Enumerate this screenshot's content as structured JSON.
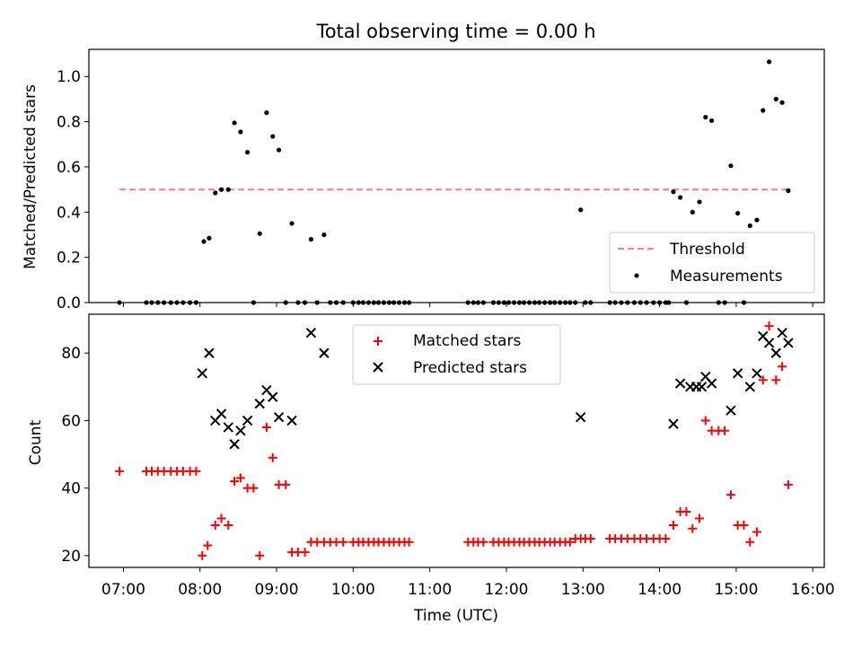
{
  "chart_data": [
    {
      "type": "scatter",
      "title": "Total observing time = 0.00 h",
      "xlabel": "",
      "ylabel": "Matched/Predicted stars",
      "xlim": [
        6.55,
        16.15
      ],
      "ylim": [
        0,
        1.12
      ],
      "yticks": [
        "0.0",
        "0.2",
        "0.4",
        "0.6",
        "0.8",
        "1.0"
      ],
      "ytick_values": [
        0,
        0.2,
        0.4,
        0.6,
        0.8,
        1.0
      ],
      "grid": false,
      "legend": {
        "placement": "lower-right",
        "entries": [
          {
            "label": "Threshold",
            "color": "#ff7f7f",
            "style": "dashed-line"
          },
          {
            "label": "Measurements",
            "color": "#000000",
            "style": "dot"
          }
        ]
      },
      "threshold": {
        "label": "Threshold",
        "value": 0.5,
        "x": [
          6.95,
          15.7
        ]
      },
      "series": [
        {
          "name": "Measurements",
          "color": "#000000",
          "points": [
            [
              6.95,
              0
            ],
            [
              7.3,
              0
            ],
            [
              7.37,
              0
            ],
            [
              7.45,
              0
            ],
            [
              7.53,
              0
            ],
            [
              7.62,
              0
            ],
            [
              7.7,
              0
            ],
            [
              7.78,
              0
            ],
            [
              7.87,
              0
            ],
            [
              7.95,
              0
            ],
            [
              8.05,
              0.27
            ],
            [
              8.12,
              0.285
            ],
            [
              8.2,
              0.485
            ],
            [
              8.28,
              0.5
            ],
            [
              8.37,
              0.5
            ],
            [
              8.45,
              0.795
            ],
            [
              8.53,
              0.755
            ],
            [
              8.62,
              0.665
            ],
            [
              8.7,
              0
            ],
            [
              8.78,
              0.305
            ],
            [
              8.87,
              0.84
            ],
            [
              8.95,
              0.735
            ],
            [
              9.03,
              0.675
            ],
            [
              9.12,
              0
            ],
            [
              9.2,
              0.35
            ],
            [
              9.28,
              0
            ],
            [
              9.37,
              0
            ],
            [
              9.45,
              0.28
            ],
            [
              9.53,
              0
            ],
            [
              9.62,
              0.3
            ],
            [
              9.7,
              0
            ],
            [
              9.78,
              0
            ],
            [
              9.87,
              0
            ],
            [
              10.0,
              0
            ],
            [
              10.07,
              0
            ],
            [
              10.13,
              0
            ],
            [
              10.2,
              0
            ],
            [
              10.27,
              0
            ],
            [
              10.33,
              0
            ],
            [
              10.4,
              0
            ],
            [
              10.47,
              0
            ],
            [
              10.53,
              0
            ],
            [
              10.6,
              0
            ],
            [
              10.67,
              0
            ],
            [
              10.73,
              0
            ],
            [
              11.5,
              0
            ],
            [
              11.57,
              0
            ],
            [
              11.63,
              0
            ],
            [
              11.7,
              0
            ],
            [
              11.83,
              0
            ],
            [
              11.9,
              0
            ],
            [
              11.97,
              0
            ],
            [
              12.03,
              0
            ],
            [
              12.1,
              0
            ],
            [
              12.17,
              0
            ],
            [
              12.23,
              0
            ],
            [
              12.3,
              0
            ],
            [
              12.37,
              0
            ],
            [
              12.43,
              0
            ],
            [
              12.5,
              0
            ],
            [
              12.57,
              0
            ],
            [
              12.63,
              0
            ],
            [
              12.7,
              0
            ],
            [
              12.77,
              0
            ],
            [
              12.83,
              0
            ],
            [
              12.9,
              0
            ],
            [
              12.97,
              0.41
            ],
            [
              13.03,
              0
            ],
            [
              13.1,
              0
            ],
            [
              13.35,
              0
            ],
            [
              13.42,
              0
            ],
            [
              13.5,
              0
            ],
            [
              13.58,
              0
            ],
            [
              13.67,
              0
            ],
            [
              13.75,
              0
            ],
            [
              13.83,
              0
            ],
            [
              13.92,
              0
            ],
            [
              14.0,
              0
            ],
            [
              14.08,
              0
            ],
            [
              14.12,
              0
            ],
            [
              14.18,
              0.49
            ],
            [
              14.27,
              0.465
            ],
            [
              14.35,
              0
            ],
            [
              14.43,
              0.4
            ],
            [
              14.52,
              0.445
            ],
            [
              14.6,
              0.82
            ],
            [
              14.68,
              0.805
            ],
            [
              14.77,
              0
            ],
            [
              14.85,
              0
            ],
            [
              14.93,
              0.605
            ],
            [
              15.02,
              0.395
            ],
            [
              15.1,
              0
            ],
            [
              15.18,
              0.34
            ],
            [
              15.27,
              0.365
            ],
            [
              15.35,
              0.85
            ],
            [
              15.43,
              1.065
            ],
            [
              15.52,
              0.9
            ],
            [
              15.6,
              0.885
            ],
            [
              15.68,
              0.495
            ]
          ]
        }
      ]
    },
    {
      "type": "scatter",
      "title": "",
      "xlabel": "Time (UTC)",
      "ylabel": "Count",
      "xlim": [
        6.55,
        16.15
      ],
      "ylim": [
        16.5,
        91.5
      ],
      "xticks": [
        "07:00",
        "08:00",
        "09:00",
        "10:00",
        "11:00",
        "12:00",
        "13:00",
        "14:00",
        "15:00",
        "16:00"
      ],
      "xtick_values": [
        7,
        8,
        9,
        10,
        11,
        12,
        13,
        14,
        15,
        16
      ],
      "yticks": [
        "20",
        "40",
        "60",
        "80"
      ],
      "ytick_values": [
        20,
        40,
        60,
        80
      ],
      "grid": false,
      "legend": {
        "placement": "upper-center",
        "entries": [
          {
            "label": "Matched stars",
            "color": "#ff0000",
            "style": "plus"
          },
          {
            "label": "Predicted stars",
            "color": "#000000",
            "style": "x"
          }
        ]
      },
      "series": [
        {
          "name": "Matched stars",
          "color": "#ff0000",
          "marker": "plus",
          "points": [
            [
              6.95,
              45
            ],
            [
              7.3,
              45
            ],
            [
              7.37,
              45
            ],
            [
              7.45,
              45
            ],
            [
              7.53,
              45
            ],
            [
              7.62,
              45
            ],
            [
              7.7,
              45
            ],
            [
              7.78,
              45
            ],
            [
              7.87,
              45
            ],
            [
              7.95,
              45
            ],
            [
              8.03,
              20
            ],
            [
              8.1,
              23
            ],
            [
              8.2,
              29
            ],
            [
              8.28,
              31
            ],
            [
              8.37,
              29
            ],
            [
              8.45,
              42
            ],
            [
              8.53,
              43
            ],
            [
              8.62,
              40
            ],
            [
              8.7,
              40
            ],
            [
              8.78,
              20
            ],
            [
              8.87,
              58
            ],
            [
              8.95,
              49
            ],
            [
              9.03,
              41
            ],
            [
              9.12,
              41
            ],
            [
              9.2,
              21
            ],
            [
              9.28,
              21
            ],
            [
              9.37,
              21
            ],
            [
              9.45,
              24
            ],
            [
              9.53,
              24
            ],
            [
              9.62,
              24
            ],
            [
              9.7,
              24
            ],
            [
              9.78,
              24
            ],
            [
              9.87,
              24
            ],
            [
              10.0,
              24
            ],
            [
              10.07,
              24
            ],
            [
              10.13,
              24
            ],
            [
              10.2,
              24
            ],
            [
              10.27,
              24
            ],
            [
              10.33,
              24
            ],
            [
              10.4,
              24
            ],
            [
              10.47,
              24
            ],
            [
              10.53,
              24
            ],
            [
              10.6,
              24
            ],
            [
              10.67,
              24
            ],
            [
              10.73,
              24
            ],
            [
              11.5,
              24
            ],
            [
              11.57,
              24
            ],
            [
              11.63,
              24
            ],
            [
              11.7,
              24
            ],
            [
              11.83,
              24
            ],
            [
              11.9,
              24
            ],
            [
              11.97,
              24
            ],
            [
              12.03,
              24
            ],
            [
              12.1,
              24
            ],
            [
              12.17,
              24
            ],
            [
              12.23,
              24
            ],
            [
              12.3,
              24
            ],
            [
              12.37,
              24
            ],
            [
              12.43,
              24
            ],
            [
              12.5,
              24
            ],
            [
              12.57,
              24
            ],
            [
              12.63,
              24
            ],
            [
              12.7,
              24
            ],
            [
              12.77,
              24
            ],
            [
              12.83,
              24
            ],
            [
              12.9,
              25
            ],
            [
              12.97,
              25
            ],
            [
              13.03,
              25
            ],
            [
              13.1,
              25
            ],
            [
              13.35,
              25
            ],
            [
              13.42,
              25
            ],
            [
              13.5,
              25
            ],
            [
              13.58,
              25
            ],
            [
              13.67,
              25
            ],
            [
              13.75,
              25
            ],
            [
              13.83,
              25
            ],
            [
              13.92,
              25
            ],
            [
              14.0,
              25
            ],
            [
              14.08,
              25
            ],
            [
              14.18,
              29
            ],
            [
              14.27,
              33
            ],
            [
              14.35,
              33
            ],
            [
              14.43,
              28
            ],
            [
              14.52,
              31
            ],
            [
              14.6,
              60
            ],
            [
              14.68,
              57
            ],
            [
              14.77,
              57
            ],
            [
              14.85,
              57
            ],
            [
              14.93,
              38
            ],
            [
              15.02,
              29
            ],
            [
              15.1,
              29
            ],
            [
              15.18,
              24
            ],
            [
              15.27,
              27
            ],
            [
              15.35,
              72
            ],
            [
              15.43,
              88
            ],
            [
              15.52,
              72
            ],
            [
              15.6,
              76
            ],
            [
              15.68,
              41
            ]
          ]
        },
        {
          "name": "Predicted stars",
          "color": "#000000",
          "marker": "x",
          "points": [
            [
              8.03,
              74
            ],
            [
              8.12,
              80
            ],
            [
              8.2,
              60
            ],
            [
              8.28,
              62
            ],
            [
              8.37,
              58
            ],
            [
              8.45,
              53
            ],
            [
              8.53,
              57
            ],
            [
              8.62,
              60
            ],
            [
              8.78,
              65
            ],
            [
              8.87,
              69
            ],
            [
              8.95,
              67
            ],
            [
              9.03,
              61
            ],
            [
              9.2,
              60
            ],
            [
              9.45,
              86
            ],
            [
              9.62,
              80
            ],
            [
              12.97,
              61
            ],
            [
              14.18,
              59
            ],
            [
              14.27,
              71
            ],
            [
              14.4,
              70
            ],
            [
              14.48,
              70
            ],
            [
              14.55,
              70
            ],
            [
              14.6,
              73
            ],
            [
              14.68,
              71
            ],
            [
              14.93,
              63
            ],
            [
              15.02,
              74
            ],
            [
              15.18,
              70
            ],
            [
              15.27,
              74
            ],
            [
              15.35,
              85
            ],
            [
              15.43,
              83
            ],
            [
              15.52,
              80
            ],
            [
              15.6,
              86
            ],
            [
              15.68,
              83
            ]
          ]
        }
      ]
    }
  ]
}
